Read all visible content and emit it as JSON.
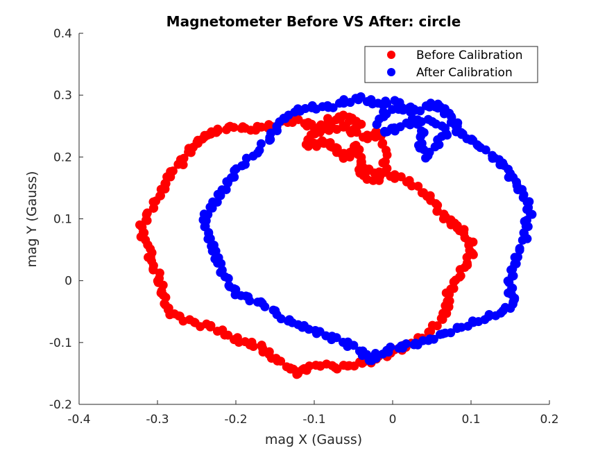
{
  "chart_data": {
    "type": "scatter",
    "title": "Magnetometer Before VS After: circle",
    "xlabel": "mag X (Gauss)",
    "ylabel": "mag Y (Gauss)",
    "xlim": [
      -0.4,
      0.2
    ],
    "ylim": [
      -0.2,
      0.4
    ],
    "xticks": [
      -0.4,
      -0.3,
      -0.2,
      -0.1,
      0,
      0.1,
      0.2
    ],
    "xtick_labels": [
      "-0.4",
      "-0.3",
      "-0.2",
      "-0.1",
      "0",
      "0.1",
      "0.2"
    ],
    "yticks": [
      -0.2,
      -0.1,
      0,
      0.1,
      0.2,
      0.3,
      0.4
    ],
    "ytick_labels": [
      "-0.2",
      "-0.1",
      "0",
      "0.1",
      "0.2",
      "0.3",
      "0.4"
    ],
    "grid": false,
    "legend_position": "top-right",
    "series": [
      {
        "name": "Before Calibration",
        "color": "#ff0000",
        "points": [
          [
            -0.04,
            0.25
          ],
          [
            -0.05,
            0.26
          ],
          [
            -0.06,
            0.265
          ],
          [
            -0.08,
            0.26
          ],
          [
            -0.09,
            0.25
          ],
          [
            -0.1,
            0.245
          ],
          [
            -0.11,
            0.255
          ],
          [
            -0.13,
            0.26
          ],
          [
            -0.15,
            0.25
          ],
          [
            -0.16,
            0.25
          ],
          [
            -0.18,
            0.245
          ],
          [
            -0.2,
            0.25
          ],
          [
            -0.22,
            0.245
          ],
          [
            -0.23,
            0.24
          ],
          [
            -0.24,
            0.235
          ],
          [
            -0.25,
            0.225
          ],
          [
            -0.26,
            0.21
          ],
          [
            -0.27,
            0.19
          ],
          [
            -0.285,
            0.17
          ],
          [
            -0.29,
            0.15
          ],
          [
            -0.3,
            0.13
          ],
          [
            -0.31,
            0.11
          ],
          [
            -0.32,
            0.09
          ],
          [
            -0.32,
            0.07
          ],
          [
            -0.31,
            0.05
          ],
          [
            -0.31,
            0.03
          ],
          [
            -0.3,
            0.01
          ],
          [
            -0.295,
            -0.01
          ],
          [
            -0.29,
            -0.03
          ],
          [
            -0.285,
            -0.05
          ],
          [
            -0.27,
            -0.06
          ],
          [
            -0.25,
            -0.07
          ],
          [
            -0.23,
            -0.075
          ],
          [
            -0.21,
            -0.09
          ],
          [
            -0.19,
            -0.1
          ],
          [
            -0.17,
            -0.105
          ],
          [
            -0.16,
            -0.115
          ],
          [
            -0.15,
            -0.125
          ],
          [
            -0.13,
            -0.14
          ],
          [
            -0.12,
            -0.15
          ],
          [
            -0.11,
            -0.14
          ],
          [
            -0.09,
            -0.135
          ],
          [
            -0.07,
            -0.14
          ],
          [
            -0.05,
            -0.135
          ],
          [
            -0.03,
            -0.13
          ],
          [
            -0.01,
            -0.12
          ],
          [
            0.01,
            -0.11
          ],
          [
            0.03,
            -0.1
          ],
          [
            0.05,
            -0.08
          ],
          [
            0.065,
            -0.06
          ],
          [
            0.07,
            -0.04
          ],
          [
            0.07,
            -0.02
          ],
          [
            0.08,
            0.0
          ],
          [
            0.09,
            0.02
          ],
          [
            0.1,
            0.04
          ],
          [
            0.1,
            0.06
          ],
          [
            0.09,
            0.08
          ],
          [
            0.08,
            0.09
          ],
          [
            0.07,
            0.1
          ],
          [
            0.06,
            0.11
          ],
          [
            0.05,
            0.13
          ],
          [
            0.04,
            0.14
          ],
          [
            0.02,
            0.16
          ],
          [
            0.0,
            0.17
          ],
          [
            -0.02,
            0.175
          ],
          [
            -0.035,
            0.18
          ],
          [
            -0.04,
            0.2
          ],
          [
            -0.045,
            0.22
          ],
          [
            -0.05,
            0.21
          ],
          [
            -0.06,
            0.2
          ],
          [
            -0.07,
            0.21
          ],
          [
            -0.08,
            0.22
          ],
          [
            -0.09,
            0.225
          ],
          [
            -0.1,
            0.22
          ],
          [
            -0.11,
            0.22
          ],
          [
            -0.1,
            0.24
          ],
          [
            -0.08,
            0.245
          ],
          [
            -0.06,
            0.25
          ],
          [
            -0.05,
            0.24
          ],
          [
            -0.03,
            0.23
          ],
          [
            -0.02,
            0.24
          ],
          [
            -0.01,
            0.21
          ],
          [
            -0.01,
            0.18
          ],
          [
            -0.02,
            0.16
          ],
          [
            -0.04,
            0.17
          ],
          [
            -0.04,
            0.19
          ]
        ]
      },
      {
        "name": "After Calibration",
        "color": "#0000ff",
        "points": [
          [
            -0.02,
            0.25
          ],
          [
            -0.01,
            0.27
          ],
          [
            0.01,
            0.28
          ],
          [
            0.03,
            0.275
          ],
          [
            0.05,
            0.285
          ],
          [
            0.06,
            0.28
          ],
          [
            0.07,
            0.27
          ],
          [
            0.08,
            0.255
          ],
          [
            0.085,
            0.24
          ],
          [
            0.1,
            0.23
          ],
          [
            0.11,
            0.22
          ],
          [
            0.13,
            0.2
          ],
          [
            0.14,
            0.19
          ],
          [
            0.15,
            0.17
          ],
          [
            0.16,
            0.15
          ],
          [
            0.17,
            0.13
          ],
          [
            0.175,
            0.11
          ],
          [
            0.17,
            0.09
          ],
          [
            0.17,
            0.07
          ],
          [
            0.16,
            0.04
          ],
          [
            0.155,
            0.02
          ],
          [
            0.15,
            0.0
          ],
          [
            0.15,
            -0.02
          ],
          [
            0.155,
            -0.035
          ],
          [
            0.14,
            -0.05
          ],
          [
            0.12,
            -0.06
          ],
          [
            0.1,
            -0.07
          ],
          [
            0.08,
            -0.08
          ],
          [
            0.06,
            -0.09
          ],
          [
            0.04,
            -0.1
          ],
          [
            0.02,
            -0.105
          ],
          [
            0.0,
            -0.11
          ],
          [
            -0.02,
            -0.12
          ],
          [
            -0.03,
            -0.13
          ],
          [
            -0.04,
            -0.115
          ],
          [
            -0.06,
            -0.1
          ],
          [
            -0.08,
            -0.09
          ],
          [
            -0.1,
            -0.08
          ],
          [
            -0.12,
            -0.07
          ],
          [
            -0.14,
            -0.06
          ],
          [
            -0.16,
            -0.04
          ],
          [
            -0.18,
            -0.03
          ],
          [
            -0.2,
            -0.02
          ],
          [
            -0.21,
            -0.005
          ],
          [
            -0.22,
            0.02
          ],
          [
            -0.225,
            0.04
          ],
          [
            -0.23,
            0.06
          ],
          [
            -0.235,
            0.08
          ],
          [
            -0.24,
            0.1
          ],
          [
            -0.23,
            0.12
          ],
          [
            -0.22,
            0.14
          ],
          [
            -0.21,
            0.16
          ],
          [
            -0.2,
            0.18
          ],
          [
            -0.18,
            0.2
          ],
          [
            -0.16,
            0.225
          ],
          [
            -0.15,
            0.24
          ],
          [
            -0.14,
            0.26
          ],
          [
            -0.12,
            0.275
          ],
          [
            -0.1,
            0.28
          ],
          [
            -0.08,
            0.28
          ],
          [
            -0.06,
            0.29
          ],
          [
            -0.04,
            0.295
          ],
          [
            -0.02,
            0.285
          ],
          [
            0.0,
            0.29
          ],
          [
            0.02,
            0.28
          ],
          [
            0.03,
            0.26
          ],
          [
            0.04,
            0.24
          ],
          [
            0.035,
            0.22
          ],
          [
            0.045,
            0.2
          ],
          [
            0.06,
            0.23
          ],
          [
            0.07,
            0.24
          ],
          [
            0.05,
            0.26
          ],
          [
            0.02,
            0.255
          ],
          [
            0.0,
            0.245
          ],
          [
            -0.01,
            0.24
          ]
        ]
      }
    ]
  }
}
